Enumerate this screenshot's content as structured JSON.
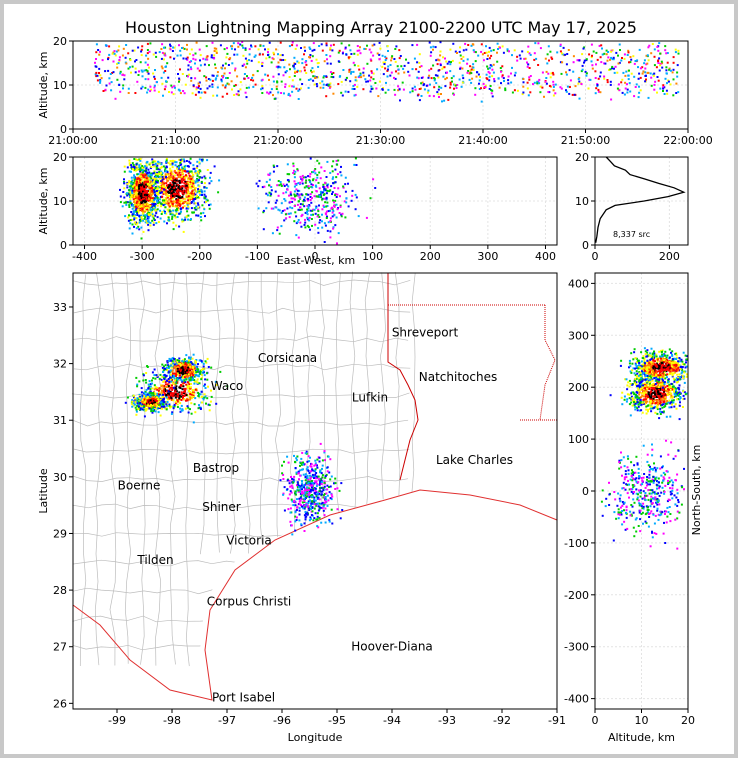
{
  "title": "Houston Lightning Mapping Array 2100-2200 UTC May 17, 2025",
  "colors": {
    "frame": "#c8c8c8",
    "county": "#bdbdbd",
    "state": "#cc0000",
    "coast": "#e03030"
  },
  "chart_data": [
    {
      "type": "scatter",
      "panel": "altitude-time",
      "ylabel": "Altitude, km",
      "ylim": [
        0,
        20
      ],
      "yticks": [
        "0",
        "10",
        "20"
      ],
      "xticks": [
        "21:00:00",
        "21:10:00",
        "21:20:00",
        "21:30:00",
        "21:40:00",
        "21:50:00",
        "22:00:00"
      ],
      "xlim_minutes": [
        0,
        60
      ],
      "sources_altitude_band_km": [
        8,
        18
      ],
      "sources_time_span": [
        "21:02:00",
        "21:59:00"
      ]
    },
    {
      "type": "scatter",
      "panel": "altitude-east-west",
      "xlabel": "East-West, km",
      "ylabel": "Altitude, km",
      "xlim": [
        -420,
        420
      ],
      "ylim": [
        0,
        20
      ],
      "xticks": [
        "-400",
        "-300",
        "-200",
        "-100",
        "0",
        "100",
        "200",
        "300",
        "400"
      ],
      "yticks": [
        "0",
        "10",
        "20"
      ],
      "clusters": [
        {
          "x_center_km": -240,
          "x_spread_km": 35,
          "alt_center_km": 13,
          "intensity": "high"
        },
        {
          "x_center_km": -300,
          "x_spread_km": 20,
          "alt_center_km": 12,
          "intensity": "high"
        },
        {
          "x_center_km": -10,
          "x_spread_km": 55,
          "alt_center_km": 11,
          "intensity": "low"
        }
      ]
    },
    {
      "type": "line",
      "panel": "altitude-histogram",
      "annotation": "8,337 src",
      "xlim": [
        0,
        250
      ],
      "ylim": [
        0,
        20
      ],
      "xticks": [
        "0",
        "200"
      ],
      "yticks": [
        "0",
        "10",
        "20"
      ],
      "profile": [
        {
          "alt": 0.5,
          "count": 2
        },
        {
          "alt": 2,
          "count": 5
        },
        {
          "alt": 4,
          "count": 8
        },
        {
          "alt": 6,
          "count": 14
        },
        {
          "alt": 8,
          "count": 30
        },
        {
          "alt": 9,
          "count": 60
        },
        {
          "alt": 10,
          "count": 130
        },
        {
          "alt": 11,
          "count": 200
        },
        {
          "alt": 12,
          "count": 240
        },
        {
          "alt": 13,
          "count": 215
        },
        {
          "alt": 14,
          "count": 175
        },
        {
          "alt": 15,
          "count": 140
        },
        {
          "alt": 16,
          "count": 100
        },
        {
          "alt": 17,
          "count": 75
        },
        {
          "alt": 18,
          "count": 55
        },
        {
          "alt": 19,
          "count": 40
        },
        {
          "alt": 20,
          "count": 30
        }
      ]
    },
    {
      "type": "scatter",
      "panel": "plan-view-map",
      "xlabel": "Longitude",
      "ylabel": "Latitude",
      "xlim": [
        -99.8,
        -91
      ],
      "ylim": [
        25.9,
        33.6
      ],
      "xticks": [
        "-99",
        "-98",
        "-97",
        "-96",
        "-95",
        "-94",
        "-93",
        "-92",
        "-91"
      ],
      "yticks": [
        "26",
        "27",
        "28",
        "29",
        "30",
        "31",
        "32",
        "33"
      ],
      "cities": [
        {
          "name": "Corsicana",
          "lon": -95.9,
          "lat": 32.1,
          "color": "#000000"
        },
        {
          "name": "Shreveport",
          "lon": -93.4,
          "lat": 32.55,
          "color": "#000000"
        },
        {
          "name": "Waco",
          "lon": -97.0,
          "lat": 31.6,
          "color": "#000000"
        },
        {
          "name": "Natchitoches",
          "lon": -92.8,
          "lat": 31.76,
          "color": "#000000"
        },
        {
          "name": "Lufkin",
          "lon": -94.4,
          "lat": 31.4,
          "color": "#000000"
        },
        {
          "name": "Bastrop",
          "lon": -97.2,
          "lat": 30.16,
          "color": "#000000"
        },
        {
          "name": "Lake Charles",
          "lon": -92.5,
          "lat": 30.3,
          "color": "#000000"
        },
        {
          "name": "Boerne",
          "lon": -98.6,
          "lat": 29.85,
          "color": "#000000"
        },
        {
          "name": "Shiner",
          "lon": -97.1,
          "lat": 29.47,
          "color": "#000000"
        },
        {
          "name": "Victoria",
          "lon": -96.6,
          "lat": 28.88,
          "color": "#000000"
        },
        {
          "name": "Tilden",
          "lon": -98.3,
          "lat": 28.53,
          "color": "#000000"
        },
        {
          "name": "Corpus Christi",
          "lon": -96.6,
          "lat": 27.8,
          "color": "#000000"
        },
        {
          "name": "Hoover-Diana",
          "lon": -94.0,
          "lat": 27.0,
          "color": "#0000cc"
        },
        {
          "name": "Port Isabel",
          "lon": -96.7,
          "lat": 26.1,
          "color": "#000000"
        }
      ],
      "clusters": [
        {
          "lon": -97.95,
          "lat": 31.52,
          "spread_lon": 0.45,
          "spread_lat": 0.25,
          "intensity": "high"
        },
        {
          "lon": -98.4,
          "lat": 31.34,
          "spread_lon": 0.2,
          "spread_lat": 0.1,
          "intensity": "high"
        },
        {
          "lon": -97.8,
          "lat": 31.9,
          "spread_lon": 0.25,
          "spread_lat": 0.15,
          "intensity": "high"
        },
        {
          "lon": -95.5,
          "lat": 29.8,
          "spread_lon": 0.3,
          "spread_lat": 0.4,
          "intensity": "low"
        }
      ]
    },
    {
      "type": "scatter",
      "panel": "altitude-north-south",
      "xlabel": "Altitude, km",
      "ylabel": "North-South, km",
      "xlim": [
        0,
        20
      ],
      "ylim": [
        -420,
        420
      ],
      "xticks": [
        "0",
        "10",
        "20"
      ],
      "yticks": [
        "400",
        "300",
        "200",
        "100",
        "0",
        "-100",
        "-200",
        "-300",
        "-400"
      ],
      "clusters": [
        {
          "alt_center_km": 13,
          "y_center_km": 190,
          "y_spread_km": 25,
          "intensity": "high"
        },
        {
          "alt_center_km": 14,
          "y_center_km": 240,
          "y_spread_km": 20,
          "intensity": "high"
        },
        {
          "alt_center_km": 11,
          "y_center_km": 0,
          "y_spread_km": 55,
          "intensity": "low"
        }
      ]
    }
  ]
}
